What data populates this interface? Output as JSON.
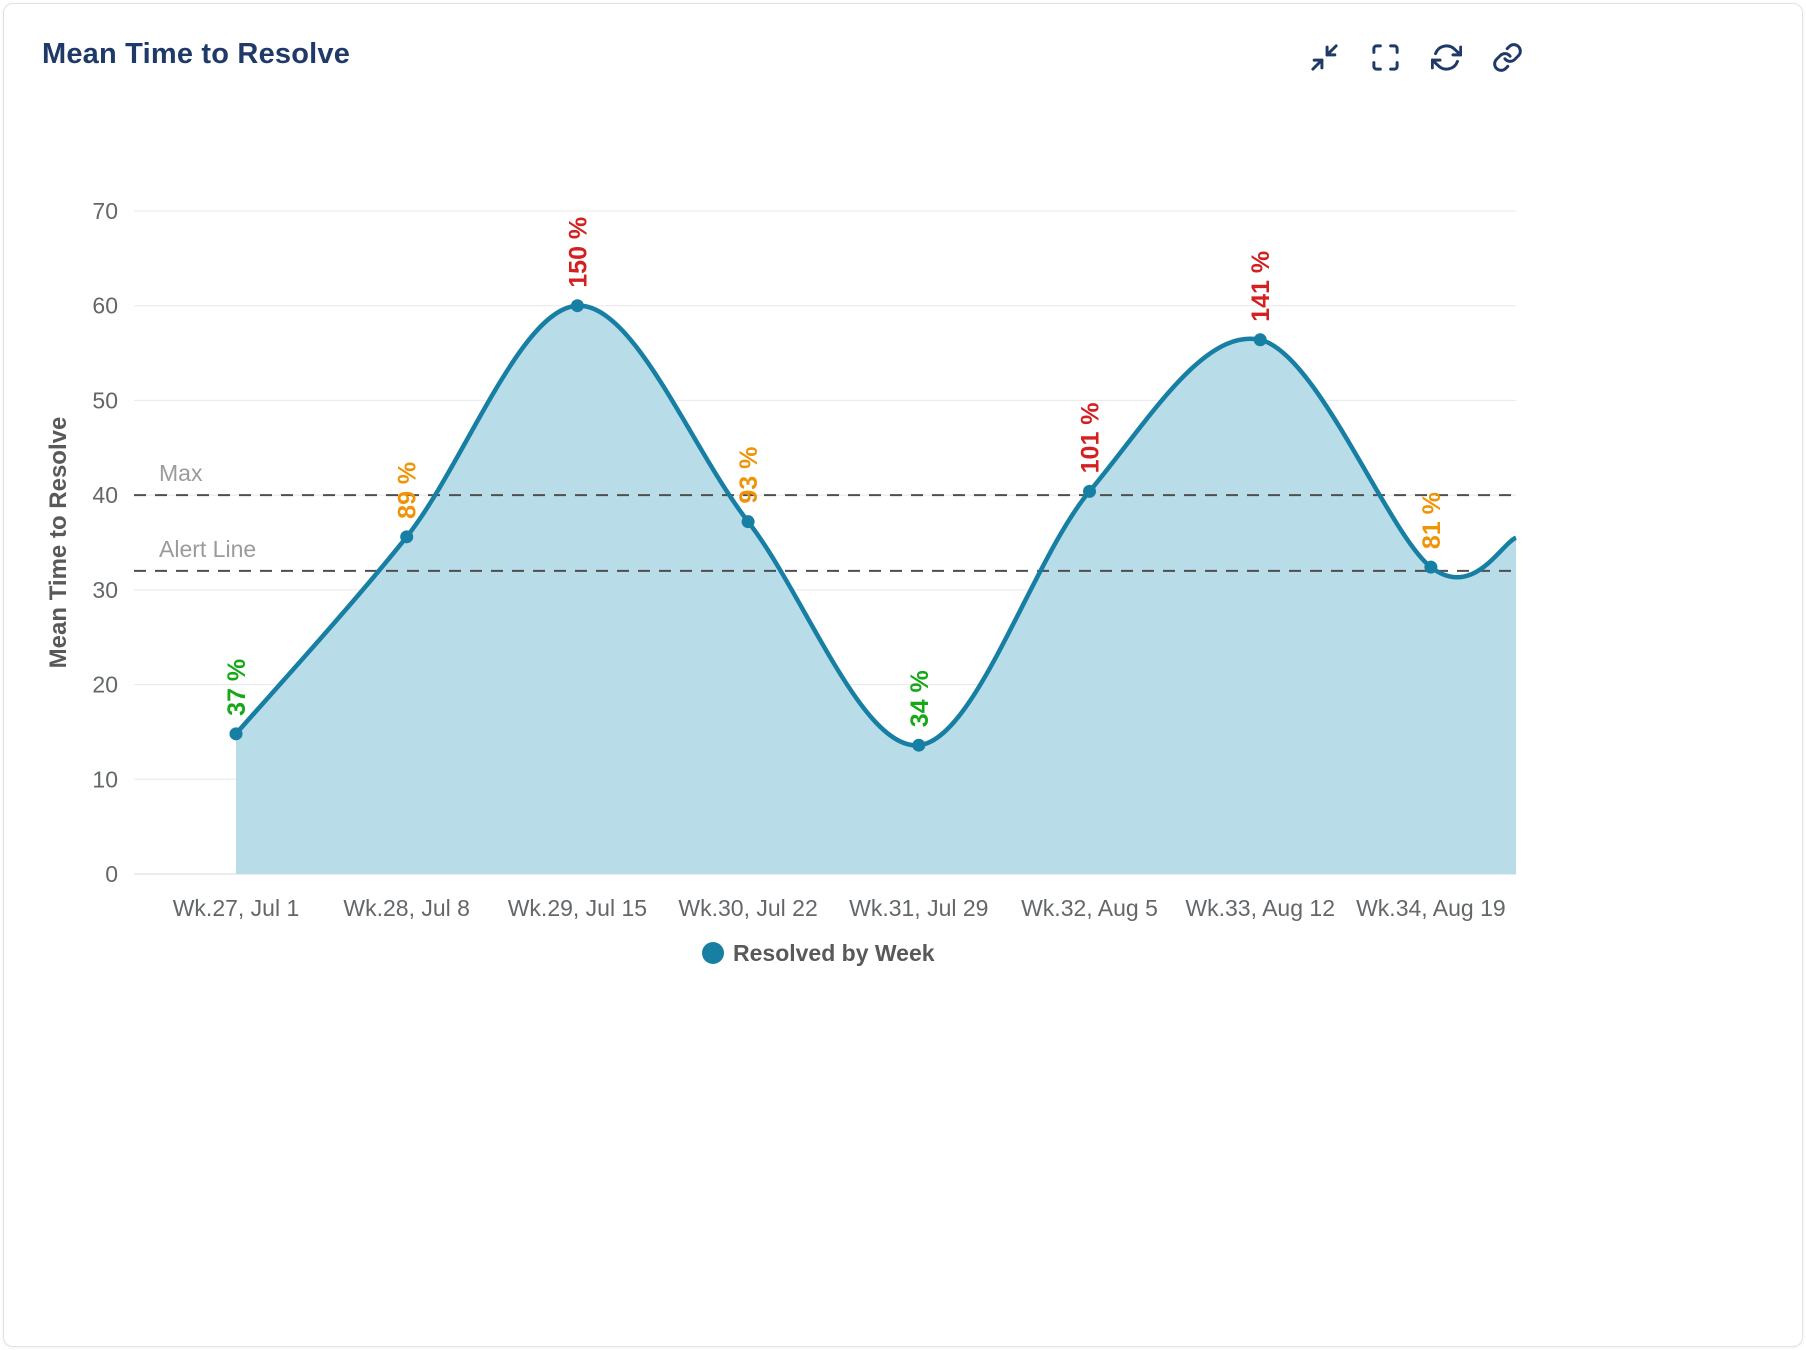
{
  "header": {
    "title": "Mean Time to Resolve",
    "toolbar_icons": [
      "collapse-arrows-icon",
      "fullscreen-icon",
      "refresh-icon",
      "link-icon"
    ]
  },
  "colors": {
    "accent": "#177fa3",
    "fill": "#b9dce9",
    "title": "#1f3a68",
    "icon": "#1f3a68",
    "axis_text": "#63676a",
    "grid": "#e8e8e8",
    "ref_line": "#4f4f4f",
    "ref_label": "#9b9b9b",
    "legend_text": "#595959",
    "green": "#17a817",
    "orange": "#ef9409",
    "red": "#d42020"
  },
  "chart_data": {
    "type": "area",
    "title": "Mean Time to Resolve",
    "xlabel": "",
    "ylabel": "Mean Time to Resolve",
    "ylim": [
      0,
      70
    ],
    "ytick_step": 10,
    "grid": true,
    "legend_position": "bottom-center",
    "categories": [
      "Wk.27, Jul 1",
      "Wk.28, Jul 8",
      "Wk.29, Jul 15",
      "Wk.30, Jul 22",
      "Wk.31, Jul 29",
      "Wk.32, Aug 5",
      "Wk.33, Aug 12",
      "Wk.34, Aug 19"
    ],
    "series": [
      {
        "name": "Resolved by Week",
        "values": [
          14.8,
          35.6,
          60,
          37.2,
          13.6,
          40.4,
          56.4,
          32.4
        ]
      }
    ],
    "point_labels": [
      {
        "text": "37 %",
        "color": "green"
      },
      {
        "text": "89 %",
        "color": "orange"
      },
      {
        "text": "150 %",
        "color": "red"
      },
      {
        "text": "93 %",
        "color": "orange"
      },
      {
        "text": "34 %",
        "color": "green"
      },
      {
        "text": "101 %",
        "color": "red"
      },
      {
        "text": "141 %",
        "color": "red"
      },
      {
        "text": "81 %",
        "color": "orange"
      }
    ],
    "reference_lines": [
      {
        "label": "Max",
        "value": 40
      },
      {
        "label": "Alert Line",
        "value": 32
      }
    ],
    "legend": [
      {
        "label": "Resolved by Week"
      }
    ],
    "right_edge_value": 35.5
  }
}
